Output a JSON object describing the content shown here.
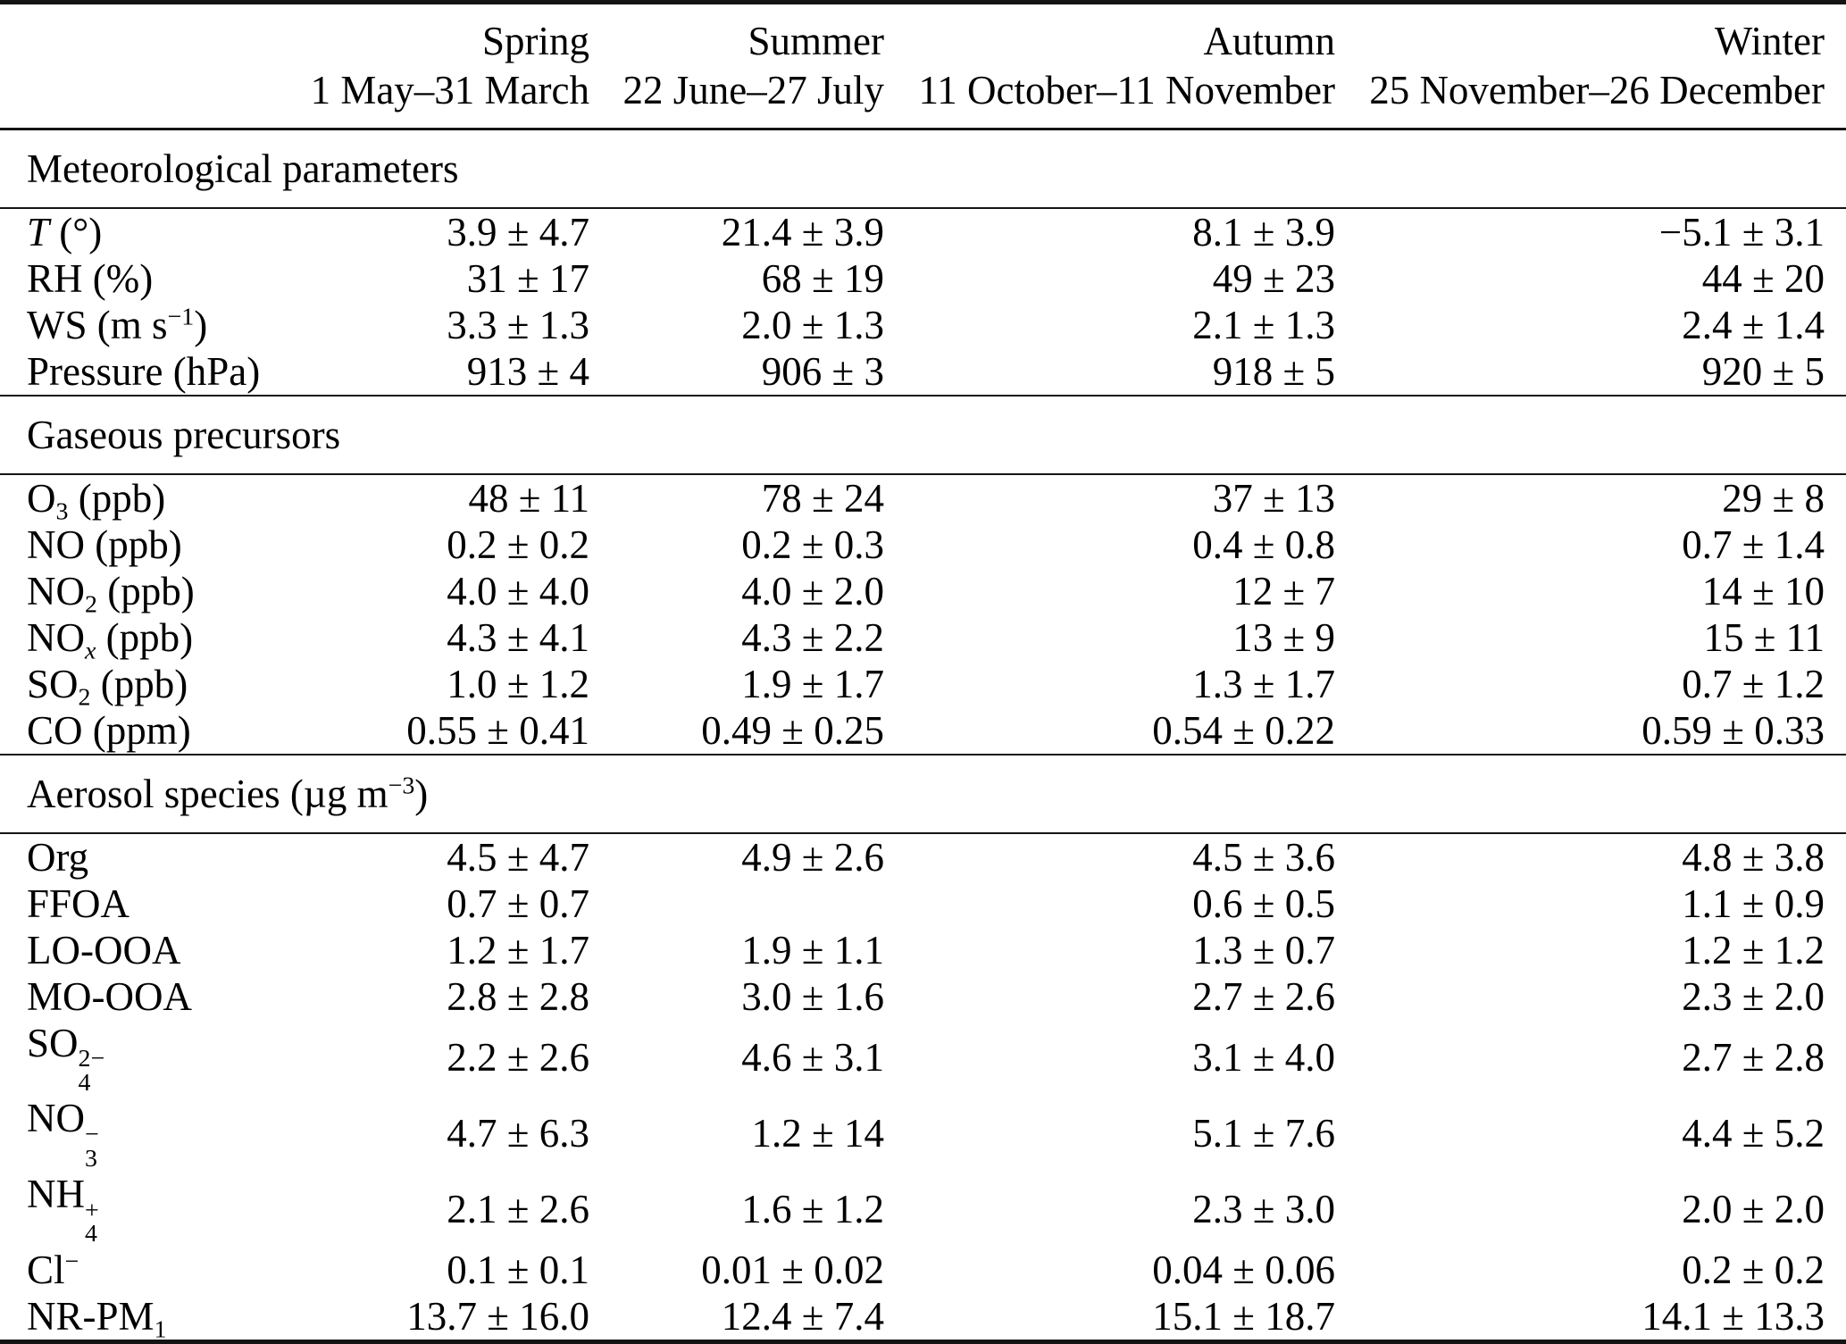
{
  "styles": {
    "text_color": "#000000",
    "background": "#ffffff",
    "rule_color": "#141414"
  },
  "header": {
    "columns": [
      {
        "season": "Spring",
        "dates": "1 May–31 March"
      },
      {
        "season": "Summer",
        "dates": "22 June–27 July"
      },
      {
        "season": "Autumn",
        "dates": "11 October–11 November"
      },
      {
        "season": "Winter",
        "dates": "25 November–26 December"
      }
    ]
  },
  "sections": [
    {
      "title": [
        {
          "text": "Meteorological parameters"
        }
      ],
      "rows": [
        {
          "label": [
            {
              "text": "T",
              "style": "italic"
            },
            {
              "text": " (°)"
            }
          ],
          "values": [
            "3.9 ± 4.7",
            "21.4 ± 3.9",
            "8.1 ± 3.9",
            "−5.1 ± 3.1"
          ]
        },
        {
          "label": [
            {
              "text": "RH (%)"
            }
          ],
          "values": [
            "31 ± 17",
            "68 ± 19",
            "49 ± 23",
            "44 ± 20"
          ]
        },
        {
          "label": [
            {
              "text": "WS (m s"
            },
            {
              "text": "−1",
              "style": "sup"
            },
            {
              "text": ")"
            }
          ],
          "values": [
            "3.3 ± 1.3",
            "2.0 ± 1.3",
            "2.1 ± 1.3",
            "2.4 ± 1.4"
          ]
        },
        {
          "label": [
            {
              "text": "Pressure (hPa)"
            }
          ],
          "values": [
            "913 ± 4",
            "906 ± 3",
            "918 ± 5",
            "920 ± 5"
          ]
        }
      ]
    },
    {
      "title": [
        {
          "text": "Gaseous precursors"
        }
      ],
      "rows": [
        {
          "label": [
            {
              "text": "O"
            },
            {
              "text": "3",
              "style": "sub"
            },
            {
              "text": " (ppb)"
            }
          ],
          "values": [
            "48 ± 11",
            "78 ± 24",
            "37 ± 13",
            "29 ± 8"
          ]
        },
        {
          "label": [
            {
              "text": "NO (ppb)"
            }
          ],
          "values": [
            "0.2 ± 0.2",
            "0.2 ± 0.3",
            "0.4 ± 0.8",
            "0.7 ± 1.4"
          ]
        },
        {
          "label": [
            {
              "text": "NO"
            },
            {
              "text": "2",
              "style": "sub"
            },
            {
              "text": " (ppb)"
            }
          ],
          "values": [
            "4.0 ± 4.0",
            "4.0 ± 2.0",
            "12 ± 7",
            "14 ± 10"
          ]
        },
        {
          "label": [
            {
              "text": "NO"
            },
            {
              "text": "x",
              "style": "sub-italic"
            },
            {
              "text": " (ppb)"
            }
          ],
          "values": [
            "4.3 ± 4.1",
            "4.3 ± 2.2",
            "13 ± 9",
            "15 ± 11"
          ]
        },
        {
          "label": [
            {
              "text": "SO"
            },
            {
              "text": "2",
              "style": "sub"
            },
            {
              "text": " (ppb)"
            }
          ],
          "values": [
            "1.0 ± 1.2",
            "1.9 ± 1.7",
            "1.3 ± 1.7",
            "0.7 ± 1.2"
          ]
        },
        {
          "label": [
            {
              "text": "CO (ppm)"
            }
          ],
          "values": [
            "0.55 ± 0.41",
            "0.49 ± 0.25",
            "0.54 ± 0.22",
            "0.59 ± 0.33"
          ]
        }
      ]
    },
    {
      "title": [
        {
          "text": "Aerosol species (µg m"
        },
        {
          "text": "−3",
          "style": "sup"
        },
        {
          "text": ")"
        }
      ],
      "rows": [
        {
          "label": [
            {
              "text": "Org"
            }
          ],
          "values": [
            "4.5 ± 4.7",
            "4.9 ± 2.6",
            "4.5 ± 3.6",
            "4.8 ± 3.8"
          ]
        },
        {
          "label": [
            {
              "text": "FFOA"
            }
          ],
          "values": [
            "0.7 ± 0.7",
            "",
            "0.6 ± 0.5",
            "1.1 ± 0.9"
          ]
        },
        {
          "label": [
            {
              "text": "LO-OOA"
            }
          ],
          "values": [
            "1.2 ± 1.7",
            "1.9 ± 1.1",
            "1.3 ± 0.7",
            "1.2 ± 1.2"
          ]
        },
        {
          "label": [
            {
              "text": "MO-OOA"
            }
          ],
          "values": [
            "2.8 ± 2.8",
            "3.0 ± 1.6",
            "2.7 ± 2.6",
            "2.3 ± 2.0"
          ]
        },
        {
          "label": [
            {
              "text": "SO"
            },
            {
              "style": "stack",
              "sup": "2−",
              "sub": "4"
            }
          ],
          "values": [
            "2.2 ± 2.6",
            "4.6 ± 3.1",
            "3.1 ± 4.0",
            "2.7 ± 2.8"
          ]
        },
        {
          "label": [
            {
              "text": "NO"
            },
            {
              "style": "stack",
              "sup": "−",
              "sub": "3"
            }
          ],
          "values": [
            "4.7 ± 6.3",
            "1.2 ± 14",
            "5.1 ± 7.6",
            "4.4 ± 5.2"
          ]
        },
        {
          "label": [
            {
              "text": "NH"
            },
            {
              "style": "stack",
              "sup": "+",
              "sub": "4"
            }
          ],
          "values": [
            "2.1 ± 2.6",
            "1.6 ± 1.2",
            "2.3 ± 3.0",
            "2.0 ± 2.0"
          ]
        },
        {
          "label": [
            {
              "text": "Cl"
            },
            {
              "text": "−",
              "style": "sup"
            }
          ],
          "values": [
            "0.1 ± 0.1",
            "0.01 ± 0.02",
            "0.04 ± 0.06",
            "0.2 ± 0.2"
          ]
        },
        {
          "label": [
            {
              "text": "NR-PM"
            },
            {
              "text": "1",
              "style": "sub"
            }
          ],
          "values": [
            "13.7 ± 16.0",
            "12.4 ± 7.4",
            "15.1 ± 18.7",
            "14.1 ± 13.3"
          ]
        }
      ]
    }
  ]
}
